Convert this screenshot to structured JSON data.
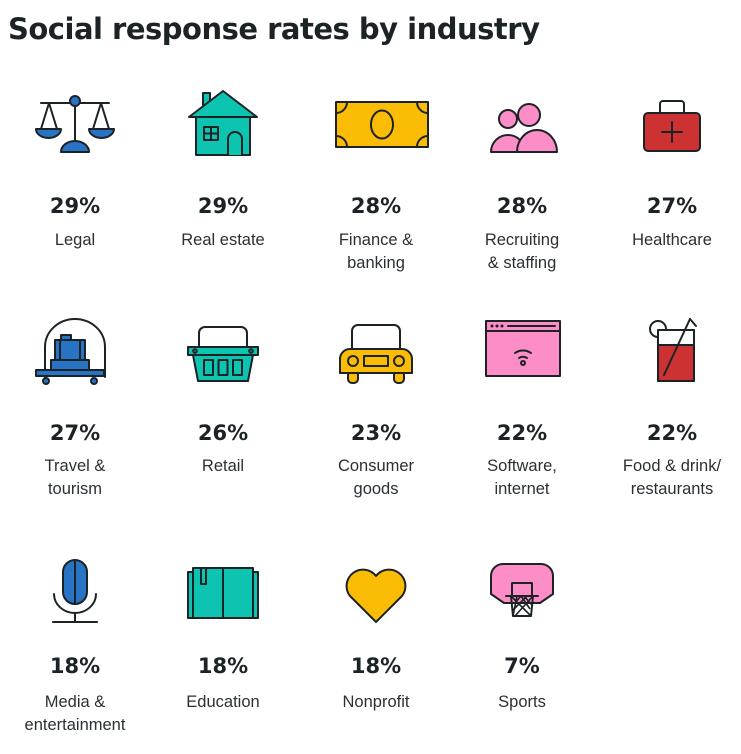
{
  "title": "Social response rates by industry",
  "colors": {
    "blue": "#2873c3",
    "teal": "#0cc4b0",
    "yellow": "#fbbc05",
    "pink": "#fd8dc6",
    "red": "#cc3232",
    "ink": "#1c2326"
  },
  "chart_data": {
    "type": "table",
    "title": "Social response rates by industry",
    "columns": [
      "industry",
      "response_rate_pct",
      "icon"
    ],
    "rows": [
      {
        "industry": "Legal",
        "value": 29,
        "display": "29%",
        "label_lines": [
          "Legal"
        ],
        "icon": "scales-icon"
      },
      {
        "industry": "Real estate",
        "value": 29,
        "display": "29%",
        "label_lines": [
          "Real estate"
        ],
        "icon": "house-icon"
      },
      {
        "industry": "Finance & banking",
        "value": 28,
        "display": "28%",
        "label_lines": [
          "Finance &",
          "banking"
        ],
        "icon": "banknote-icon"
      },
      {
        "industry": "Recruiting & staffing",
        "value": 28,
        "display": "28%",
        "label_lines": [
          "Recruiting",
          "& staffing"
        ],
        "icon": "people-icon"
      },
      {
        "industry": "Healthcare",
        "value": 27,
        "display": "27%",
        "label_lines": [
          "Healthcare"
        ],
        "icon": "medical-kit-icon"
      },
      {
        "industry": "Travel & tourism",
        "value": 27,
        "display": "27%",
        "label_lines": [
          "Travel &",
          "tourism"
        ],
        "icon": "luggage-cart-icon"
      },
      {
        "industry": "Retail",
        "value": 26,
        "display": "26%",
        "label_lines": [
          "Retail"
        ],
        "icon": "basket-icon"
      },
      {
        "industry": "Consumer goods",
        "value": 23,
        "display": "23%",
        "label_lines": [
          "Consumer",
          "goods"
        ],
        "icon": "car-icon"
      },
      {
        "industry": "Software, internet",
        "value": 22,
        "display": "22%",
        "label_lines": [
          "Software,",
          "internet"
        ],
        "icon": "browser-wifi-icon"
      },
      {
        "industry": "Food & drink/restaurants",
        "value": 22,
        "display": "22%",
        "label_lines": [
          "Food & drink/",
          "restaurants"
        ],
        "icon": "drink-icon"
      },
      {
        "industry": "Media & entertainment",
        "value": 18,
        "display": "18%",
        "label_lines": [
          "Media &",
          "entertainment"
        ],
        "icon": "microphone-icon"
      },
      {
        "industry": "Education",
        "value": 18,
        "display": "18%",
        "label_lines": [
          "Education"
        ],
        "icon": "book-icon"
      },
      {
        "industry": "Nonprofit",
        "value": 18,
        "display": "18%",
        "label_lines": [
          "Nonprofit"
        ],
        "icon": "heart-icon"
      },
      {
        "industry": "Sports",
        "value": 7,
        "display": "7%",
        "label_lines": [
          "Sports"
        ],
        "icon": "basketball-hoop-icon"
      }
    ],
    "layout": "grid of 5 columns"
  }
}
